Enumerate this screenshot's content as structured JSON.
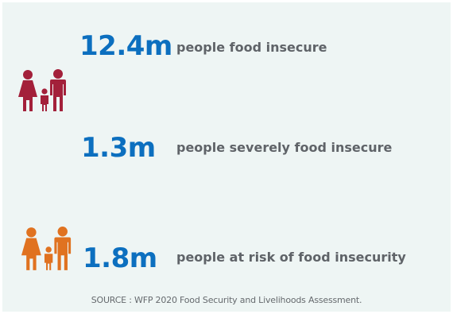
{
  "stats": [
    {
      "value": "12.4m",
      "label": "people food insecure"
    },
    {
      "value": "1.3m",
      "label": "people severely food insecure"
    },
    {
      "value": "1.8m",
      "label": "people at risk of food insecurity"
    }
  ],
  "icons": [
    {
      "name": "family-icon",
      "color": "#a3203a"
    },
    {
      "name": "family-icon",
      "color": "#e07220"
    }
  ],
  "source": "SOURCE : WFP 2020 Food Security and Livelihoods Assessment.",
  "colors": {
    "background": "#eef5f4",
    "value": "#0c6fbf",
    "label": "#5f6368"
  }
}
